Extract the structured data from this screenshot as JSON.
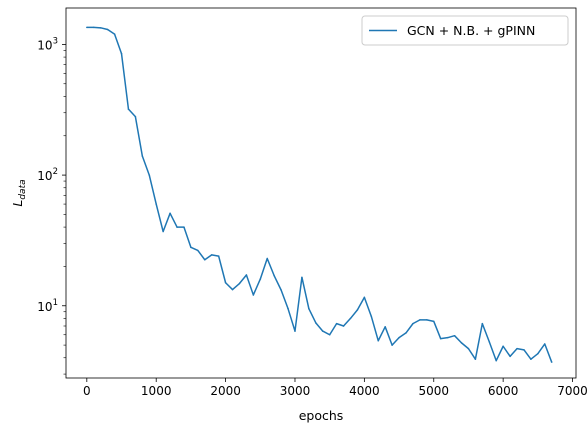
{
  "chart_data": {
    "type": "line",
    "title": "",
    "xlabel": "epochs",
    "ylabel": "L_data",
    "ylabel_main": "L",
    "ylabel_sub": "data",
    "xlim": [
      -300,
      7050
    ],
    "ylim": [
      2.8,
      1900
    ],
    "yscale": "log",
    "grid": false,
    "legend_position": "upper right",
    "x_ticks": [
      0,
      1000,
      2000,
      3000,
      4000,
      5000,
      6000,
      7000
    ],
    "x_tick_labels": [
      "0",
      "1000",
      "2000",
      "3000",
      "4000",
      "5000",
      "6000",
      "7000"
    ],
    "y_major_ticks": [
      10,
      100,
      1000
    ],
    "y_major_tick_labels": [
      {
        "base": "10",
        "exp": "1"
      },
      {
        "base": "10",
        "exp": "2"
      },
      {
        "base": "10",
        "exp": "3"
      }
    ],
    "series": [
      {
        "name": "GCN + N.B. + gPINN",
        "color": "#1f77b4",
        "x": [
          0,
          100,
          200,
          300,
          400,
          500,
          600,
          700,
          800,
          900,
          1000,
          1100,
          1200,
          1300,
          1400,
          1500,
          1600,
          1700,
          1800,
          1900,
          2000,
          2100,
          2200,
          2300,
          2400,
          2500,
          2600,
          2700,
          2800,
          2900,
          3000,
          3100,
          3200,
          3300,
          3400,
          3500,
          3600,
          3700,
          3800,
          3900,
          4000,
          4100,
          4200,
          4300,
          4400,
          4500,
          4600,
          4700,
          4800,
          4900,
          5000,
          5100,
          5200,
          5300,
          5400,
          5500,
          5600,
          5700,
          5800,
          5900,
          6000,
          6100,
          6200,
          6300,
          6400,
          6500,
          6600,
          6700
        ],
        "y": [
          1350,
          1350,
          1340,
          1300,
          1200,
          850,
          320,
          280,
          140,
          100,
          60,
          37,
          51,
          40,
          40,
          28,
          26.5,
          22.5,
          24.5,
          24,
          15,
          13.3,
          14.8,
          17.2,
          12.1,
          16,
          23,
          17,
          13.2,
          9.5,
          6.4,
          16.5,
          9.5,
          7.4,
          6.4,
          6,
          7.3,
          7,
          8,
          9.3,
          11.6,
          8.3,
          5.4,
          6.9,
          5,
          5.7,
          6.2,
          7.3,
          7.8,
          7.8,
          7.6,
          5.6,
          5.7,
          5.9,
          5.2,
          4.7,
          3.9,
          7.3,
          5.3,
          3.8,
          4.9,
          4.1,
          4.7,
          4.6,
          3.9,
          4.3,
          5.1,
          3.7
        ]
      }
    ]
  }
}
